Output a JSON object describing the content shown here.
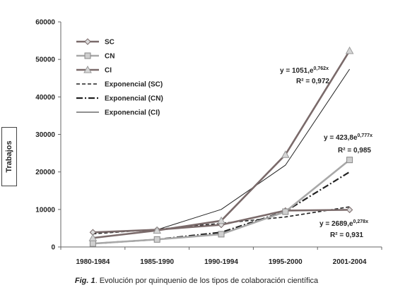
{
  "caption": {
    "label": "Fig. 1",
    "text": ". Evolución por quinquenio de los tipos de colaboración científica"
  },
  "chart_data": {
    "type": "line",
    "ylabel": "Trabajos",
    "xlabel": "",
    "categories": [
      "1980-1984",
      "1985-1990",
      "1990-1994",
      "1995-2000",
      "2001-2004"
    ],
    "ylim": [
      0,
      60000
    ],
    "yticks": [
      "0",
      "10000",
      "20000",
      "30000",
      "40000",
      "50000",
      "60000"
    ],
    "grid": false,
    "legend_position": "top-left",
    "series": [
      {
        "name": "SC",
        "values": [
          3900,
          4600,
          5900,
          9700,
          9900
        ],
        "color": "#7a6a6a",
        "marker": "diamond",
        "style": "solid"
      },
      {
        "name": "CN",
        "values": [
          900,
          2000,
          3400,
          9400,
          23200
        ],
        "color": "#a8a8a8",
        "marker": "square",
        "style": "solid"
      },
      {
        "name": "CI",
        "values": [
          2400,
          4400,
          7000,
          24600,
          52300
        ],
        "color": "#7a6a6a",
        "marker": "triangle",
        "style": "solid"
      },
      {
        "name": "Exponencial (SC)",
        "values": [
          3500,
          4700,
          6300,
          8000,
          10700
        ],
        "color": "#222222",
        "style": "dashed"
      },
      {
        "name": "Exponencial (CN)",
        "values": [
          900,
          2000,
          3900,
          9500,
          20000
        ],
        "color": "#222222",
        "style": "dashdot"
      },
      {
        "name": "Exponencial (CI)",
        "values": [
          2300,
          4600,
          10000,
          21800,
          47400
        ],
        "color": "#222222",
        "style": "thin"
      }
    ],
    "annotations": [
      {
        "equation": "y = 1051,e",
        "exponent": "0,762x",
        "r2": "R² = 0,972"
      },
      {
        "equation": "y = 423,8e",
        "exponent": "0,777x",
        "r2": "R² = 0,985"
      },
      {
        "equation": "y = 2689,e",
        "exponent": "0,278x",
        "r2": "R² = 0,931"
      }
    ]
  }
}
